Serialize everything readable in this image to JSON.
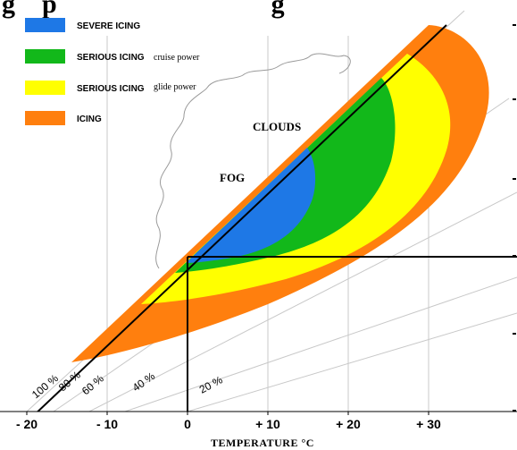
{
  "title_fragment": "g    p                                g",
  "chart_data": {
    "type": "area",
    "xlabel": "TEMPERATURE °C",
    "x_ticks": [
      "- 20",
      "- 10",
      "0",
      "+ 10",
      "+ 20",
      "+ 30"
    ],
    "xlim": [
      -20,
      36
    ],
    "legend": {
      "placement": "top-left",
      "items": [
        {
          "label": "SEVERE ICING",
          "note": "",
          "color": "#1e78e6"
        },
        {
          "label": "SERIOUS ICING",
          "note": "cruise power",
          "color": "#12b81a"
        },
        {
          "label": "SERIOUS ICING",
          "note": "glide power",
          "color": "#ffff00"
        },
        {
          "label": "ICING",
          "note": "",
          "color": "#ff7f0e"
        }
      ]
    },
    "humidity_lines": [
      "100 %",
      "80 %",
      "60 %",
      "40 %",
      "20 %"
    ],
    "annotations": [
      "CLOUDS",
      "FOG"
    ],
    "reference_lines": {
      "temperature": 0
    }
  }
}
